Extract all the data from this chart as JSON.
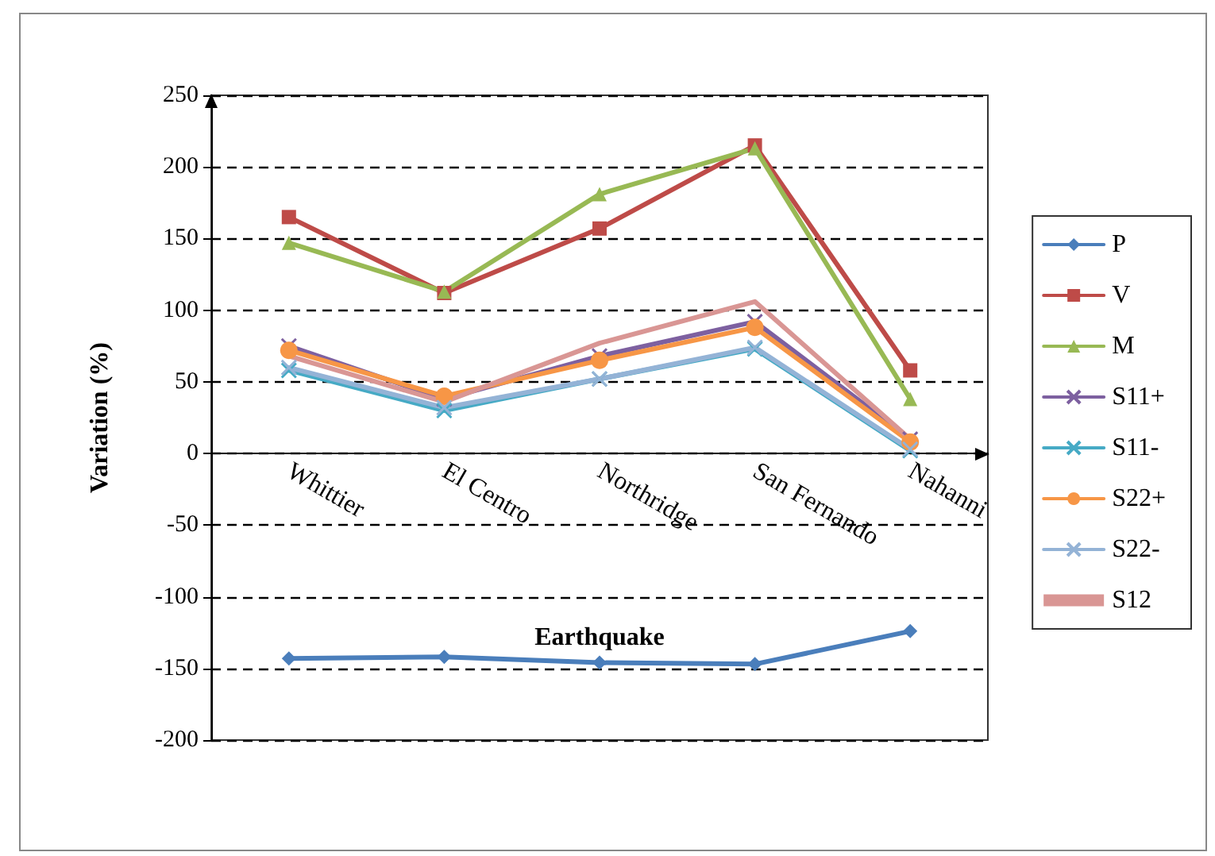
{
  "chart_data": {
    "type": "line",
    "xlabel": "Earthquake",
    "ylabel": "Variation (%)",
    "categories": [
      "Whittier",
      "El Centro",
      "Northridge",
      "San Fernando",
      "Nahanni"
    ],
    "ylim": [
      -200,
      250
    ],
    "yticks": [
      -200,
      -150,
      -100,
      -50,
      0,
      50,
      100,
      150,
      200,
      250
    ],
    "grid": "y",
    "legend": "right",
    "line_style": "solid",
    "series": [
      {
        "name": "P",
        "color": "#4a7ebb",
        "marker": "diamond",
        "values": [
          -143,
          -142,
          -146,
          -147,
          -124
        ]
      },
      {
        "name": "V",
        "color": "#be4b48",
        "marker": "square",
        "values": [
          165,
          112,
          157,
          215,
          58
        ]
      },
      {
        "name": "M",
        "color": "#98b954",
        "marker": "triangle",
        "values": [
          147,
          113,
          181,
          213,
          38
        ]
      },
      {
        "name": "S11+",
        "color": "#7d60a0",
        "marker": "cross",
        "values": [
          75,
          38,
          68,
          92,
          10
        ]
      },
      {
        "name": "S11-",
        "color": "#46aac5",
        "marker": "cross",
        "values": [
          58,
          30,
          52,
          73,
          2
        ]
      },
      {
        "name": "S22+",
        "color": "#f79646",
        "marker": "circle",
        "values": [
          72,
          40,
          65,
          88,
          8
        ]
      },
      {
        "name": "S22-",
        "color": "#94b3d6",
        "marker": "cross",
        "values": [
          60,
          32,
          52,
          74,
          3
        ]
      },
      {
        "name": "S12",
        "color": "#d99694",
        "marker": "none",
        "values": [
          68,
          36,
          77,
          106,
          10
        ]
      }
    ]
  }
}
